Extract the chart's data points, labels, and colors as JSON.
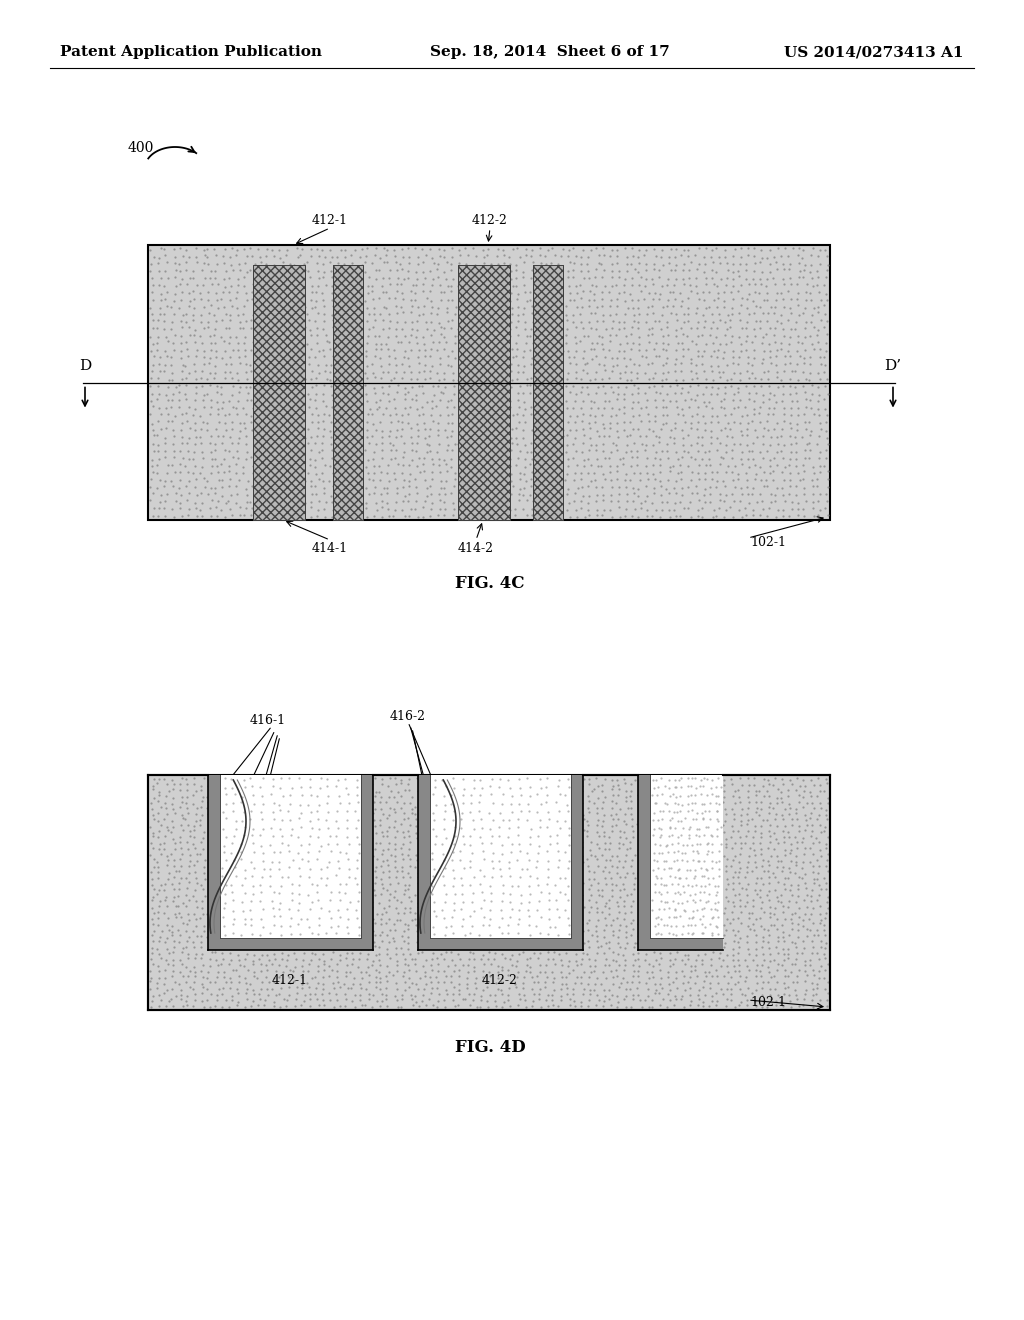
{
  "bg_color": "#ffffff",
  "header_left": "Patent Application Publication",
  "header_mid": "Sep. 18, 2014  Sheet 6 of 17",
  "header_right": "US 2014/0273413 A1",
  "stipple_color": "#c8c8c8",
  "stripe_bg": "#b0b0b0",
  "stripe_hatch_color": "#555555",
  "box_edge_color": "#000000",
  "ref_fontsize": 9,
  "fig_label_fontsize": 12,
  "label_fontsize": 10,
  "header_fontsize": 11,
  "fig4c_label": "FIG. 4C",
  "fig4d_label": "FIG. 4D",
  "ref_400": "400",
  "ref_412_1": "412-1",
  "ref_412_2": "412-2",
  "ref_414_1": "414-1",
  "ref_414_2": "414-2",
  "ref_102_1": "102-1",
  "ref_416_1": "416-1",
  "ref_416_2": "416-2",
  "ref_412_1b": "412-1",
  "ref_412_2b": "412-2",
  "ref_102_1b": "102-1",
  "D_label": "D",
  "Dp_label": "D’"
}
